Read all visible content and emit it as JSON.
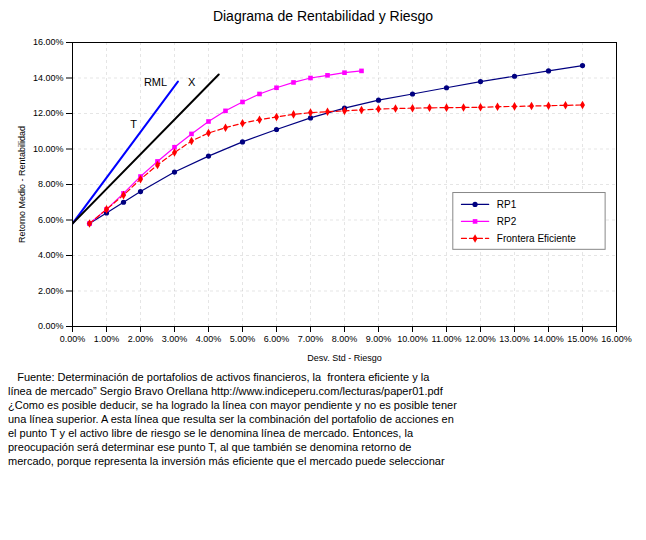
{
  "chart_data": {
    "type": "line",
    "title": "Diagrama de Rentabilidad y Riesgo",
    "xlabel": "Desv. Std - Riesgo",
    "ylabel": "Retorno Medio - Rentabilidad",
    "xlim": [
      0.0,
      0.16
    ],
    "ylim": [
      0.0,
      0.16
    ],
    "xticks": [
      {
        "value": 0.0,
        "label": "0.00%"
      },
      {
        "value": 0.01,
        "label": "1.00%"
      },
      {
        "value": 0.02,
        "label": "2.00%"
      },
      {
        "value": 0.03,
        "label": "3.00%"
      },
      {
        "value": 0.04,
        "label": "4.00%"
      },
      {
        "value": 0.05,
        "label": "5.00%"
      },
      {
        "value": 0.06,
        "label": "6.00%"
      },
      {
        "value": 0.07,
        "label": "7.00%"
      },
      {
        "value": 0.08,
        "label": "8.00%"
      },
      {
        "value": 0.09,
        "label": "9.00%"
      },
      {
        "value": 0.1,
        "label": "10.00%"
      },
      {
        "value": 0.11,
        "label": "11.00%"
      },
      {
        "value": 0.12,
        "label": "12.00%"
      },
      {
        "value": 0.13,
        "label": "13.00%"
      },
      {
        "value": 0.14,
        "label": "14.00%"
      },
      {
        "value": 0.15,
        "label": "15.00%"
      },
      {
        "value": 0.16,
        "label": "16.00%"
      }
    ],
    "yticks": [
      {
        "value": 0.0,
        "label": "0.00%"
      },
      {
        "value": 0.02,
        "label": "2.00%"
      },
      {
        "value": 0.04,
        "label": "4.00%"
      },
      {
        "value": 0.06,
        "label": "6.00%"
      },
      {
        "value": 0.08,
        "label": "8.00%"
      },
      {
        "value": 0.1,
        "label": "10.00%"
      },
      {
        "value": 0.12,
        "label": "12.00%"
      },
      {
        "value": 0.14,
        "label": "14.00%"
      },
      {
        "value": 0.16,
        "label": "16.00%"
      }
    ],
    "grid": true,
    "legend": "lower right",
    "series": [
      {
        "name": "RP1",
        "color": "#000080",
        "marker": "circle",
        "line_style": "solid",
        "x": [
          0.005,
          0.01,
          0.015,
          0.02,
          0.03,
          0.04,
          0.05,
          0.06,
          0.07,
          0.08,
          0.09,
          0.1,
          0.11,
          0.12,
          0.13,
          0.14,
          0.15
        ],
        "values": [
          0.058,
          0.064,
          0.07,
          0.076,
          0.087,
          0.096,
          0.104,
          0.111,
          0.1175,
          0.123,
          0.1275,
          0.131,
          0.1345,
          0.138,
          0.141,
          0.144,
          0.147
        ]
      },
      {
        "name": "RP2",
        "color": "#FF00FF",
        "marker": "square",
        "line_style": "solid",
        "x": [
          0.005,
          0.01,
          0.015,
          0.02,
          0.025,
          0.03,
          0.035,
          0.04,
          0.045,
          0.05,
          0.055,
          0.06,
          0.065,
          0.07,
          0.075,
          0.08,
          0.085
        ],
        "values": [
          0.058,
          0.066,
          0.075,
          0.0845,
          0.093,
          0.101,
          0.1085,
          0.1155,
          0.1215,
          0.1265,
          0.131,
          0.1345,
          0.1375,
          0.14,
          0.1415,
          0.143,
          0.144
        ]
      },
      {
        "name": "Frontera Eficiente",
        "color": "#FF0000",
        "marker": "diamond",
        "line_style": "dashed",
        "x": [
          0.005,
          0.01,
          0.015,
          0.02,
          0.025,
          0.03,
          0.035,
          0.04,
          0.045,
          0.05,
          0.055,
          0.06,
          0.065,
          0.07,
          0.075,
          0.08,
          0.085,
          0.09,
          0.095,
          0.1,
          0.105,
          0.11,
          0.115,
          0.12,
          0.125,
          0.13,
          0.135,
          0.14,
          0.145,
          0.15
        ],
        "values": [
          0.058,
          0.066,
          0.074,
          0.083,
          0.091,
          0.098,
          0.1045,
          0.109,
          0.112,
          0.1145,
          0.1165,
          0.118,
          0.1195,
          0.1205,
          0.121,
          0.1215,
          0.122,
          0.1225,
          0.1228,
          0.123,
          0.1232,
          0.1233,
          0.1234,
          0.1235,
          0.1238,
          0.124,
          0.1242,
          0.1244,
          0.1246,
          0.1248
        ]
      },
      {
        "color": "#0000FF",
        "line_style": "solid",
        "x": [
          0.0,
          0.031
        ],
        "values": [
          0.058,
          0.138
        ]
      },
      {
        "color": "#000000",
        "line_style": "solid",
        "x": [
          0.0,
          0.043
        ],
        "values": [
          0.058,
          0.142
        ]
      }
    ],
    "annotations": [
      {
        "text": "T",
        "x": 0.017,
        "y": 0.112
      },
      {
        "text": "RML",
        "x": 0.021,
        "y": 0.1355
      },
      {
        "text": "X",
        "x": 0.034,
        "y": 0.1355
      }
    ],
    "caption": [
      "   Fuente: Determinación de portafolios de activos financieros, la  frontera eficiente y la",
      "línea de mercado” Sergio Bravo Orellana http://www.indiceperu.com/lecturas/paper01.pdf",
      "¿Como es posible deducir, se ha logrado la línea con mayor pendiente y no es posible tener",
      "una línea superior. A esta línea que resulta ser la combinación del portafolio de acciones en",
      "el punto T y el activo libre de riesgo se le denomina línea de mercado. Entonces, la",
      "preocupación será determinar ese punto T, al que también se denomina retorno de",
      "mercado, porque representa la inversión más eficiente que el mercado puede seleccionar"
    ]
  }
}
